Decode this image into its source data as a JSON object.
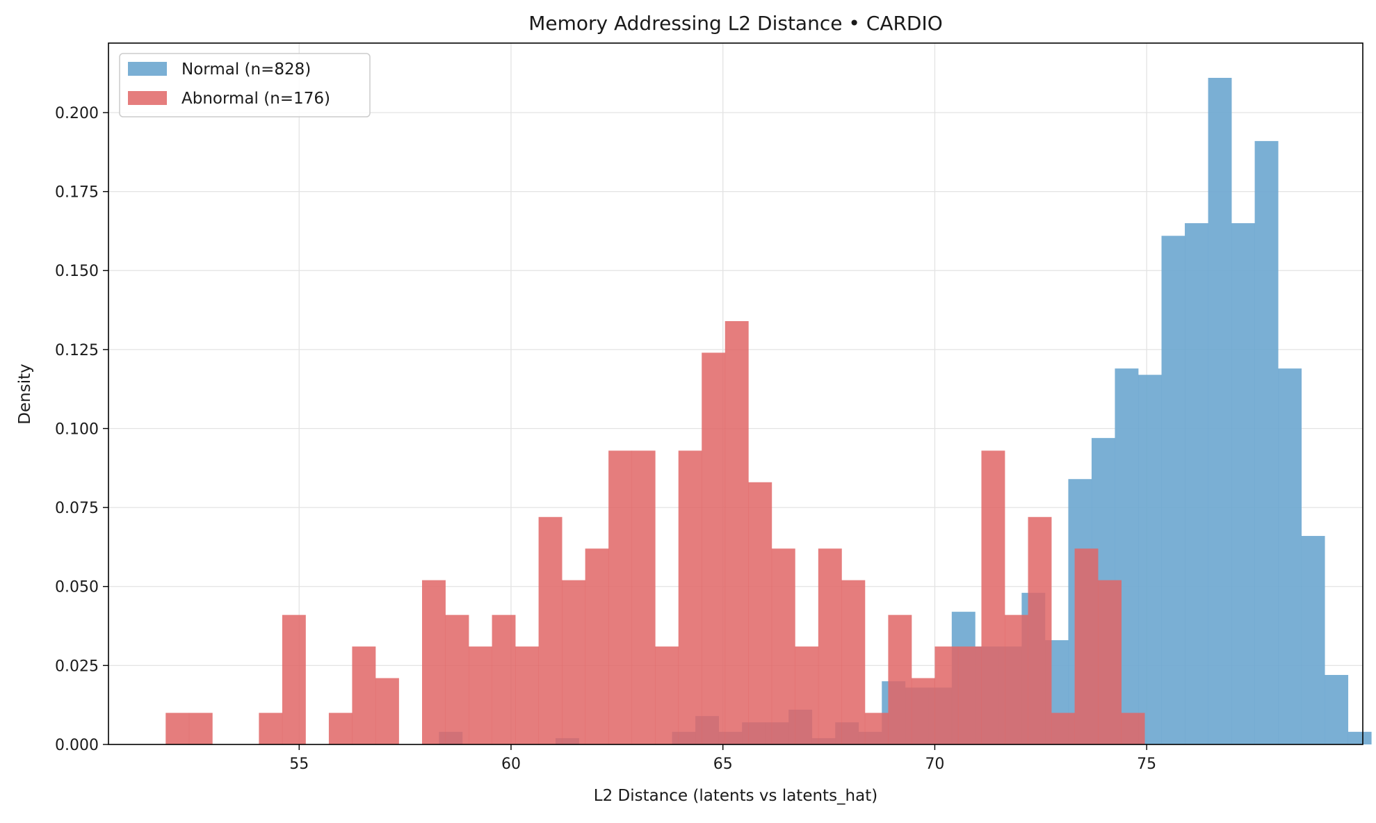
{
  "chart_data": {
    "type": "histogram",
    "title": "Memory Addressing L2 Distance • CARDIO",
    "xlabel": "L2 Distance (latents vs latents_hat)",
    "ylabel": "Density",
    "xlim": [
      50.5,
      80.1
    ],
    "ylim": [
      0,
      0.222
    ],
    "xticks": [
      55,
      60,
      65,
      70,
      75
    ],
    "xtick_labels": [
      "55",
      "60",
      "65",
      "70",
      "75"
    ],
    "yticks": [
      0,
      0.025,
      0.05,
      0.075,
      0.1,
      0.125,
      0.15,
      0.175,
      0.2
    ],
    "ytick_labels": [
      "0.000",
      "0.025",
      "0.050",
      "0.075",
      "0.100",
      "0.125",
      "0.150",
      "0.175",
      "0.200"
    ],
    "grid": true,
    "legend_position": "top-left",
    "series": [
      {
        "name": "Normal (n=828)",
        "color": "#6fa8d0",
        "bin_start": 58.3,
        "bin_width": 0.55,
        "values": [
          0.004,
          0,
          0,
          0,
          0,
          0.002,
          0,
          0,
          0,
          0,
          0.004,
          0.009,
          0.004,
          0.007,
          0.007,
          0.011,
          0.002,
          0.007,
          0.004,
          0.02,
          0.018,
          0.018,
          0.042,
          0.031,
          0.031,
          0.048,
          0.033,
          0.084,
          0.097,
          0.119,
          0.117,
          0.161,
          0.165,
          0.211,
          0.165,
          0.191,
          0.119,
          0.066,
          0.022,
          0.004
        ]
      },
      {
        "name": "Abnormal (n=176)",
        "color": "#e06666",
        "bin_start": 51.85,
        "bin_width": 0.55,
        "values": [
          0.01,
          0.01,
          0,
          0,
          0.01,
          0.041,
          0,
          0.01,
          0.031,
          0.021,
          0,
          0.052,
          0.041,
          0.031,
          0.041,
          0.031,
          0.072,
          0.052,
          0.062,
          0.093,
          0.093,
          0.031,
          0.093,
          0.124,
          0.134,
          0.083,
          0.062,
          0.031,
          0.062,
          0.052,
          0.01,
          0.041,
          0.021,
          0.031,
          0.031,
          0.093,
          0.041,
          0.072,
          0.01,
          0.062,
          0.052,
          0.01
        ]
      }
    ]
  }
}
